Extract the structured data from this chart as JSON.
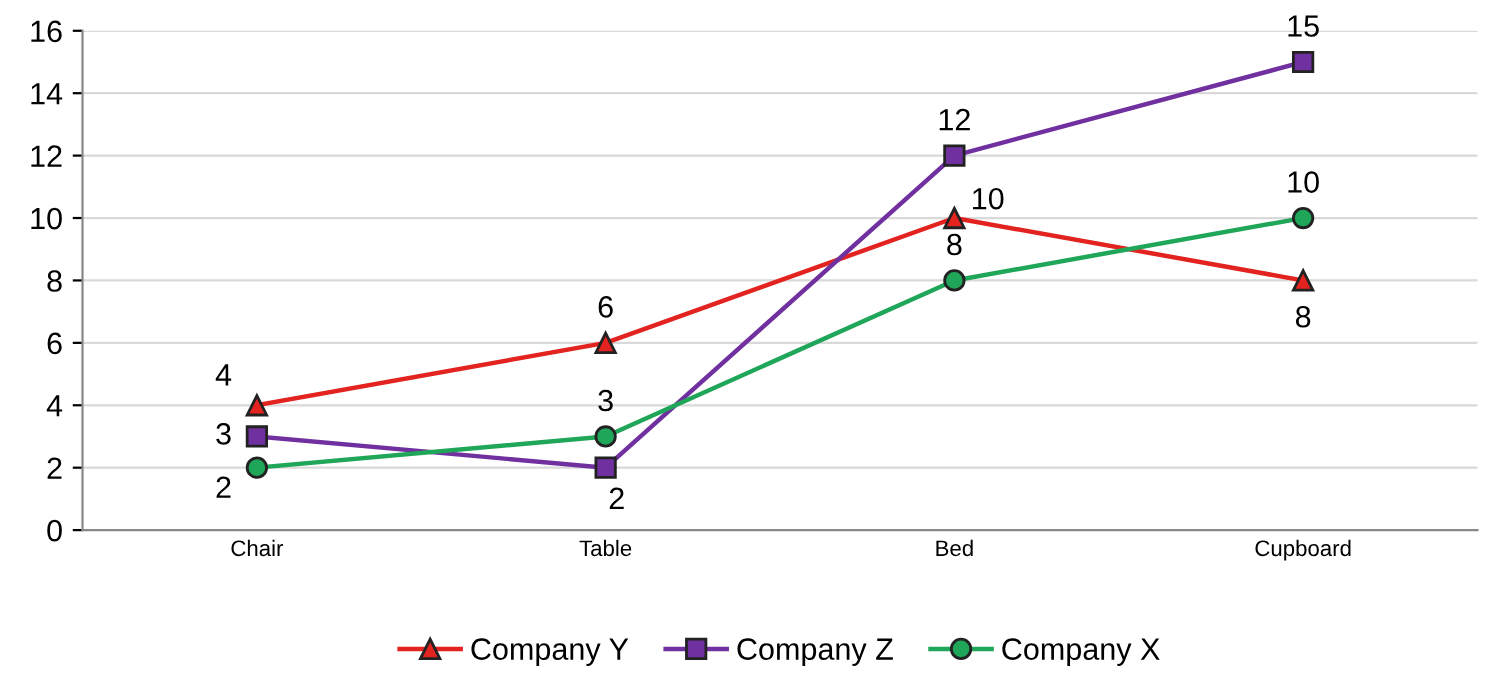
{
  "chart_data": {
    "type": "line",
    "categories": [
      "Chair",
      "Table",
      "Bed",
      "Cupboard"
    ],
    "series": [
      {
        "name": "Company Y",
        "color": "#e3231f",
        "marker": "triangle",
        "values": [
          4,
          6,
          10,
          8
        ]
      },
      {
        "name": "Company Z",
        "color": "#7030a0",
        "marker": "square",
        "values": [
          3,
          2,
          12,
          15
        ]
      },
      {
        "name": "Company X",
        "color": "#1fa659",
        "marker": "circle",
        "values": [
          2,
          3,
          8,
          10
        ]
      }
    ],
    "ylim": [
      0,
      16
    ],
    "yticks": [
      0,
      2,
      4,
      6,
      8,
      10,
      12,
      14,
      16
    ],
    "grid": "y",
    "legend": "bottom",
    "data_labels": true,
    "line_style": "solid"
  }
}
